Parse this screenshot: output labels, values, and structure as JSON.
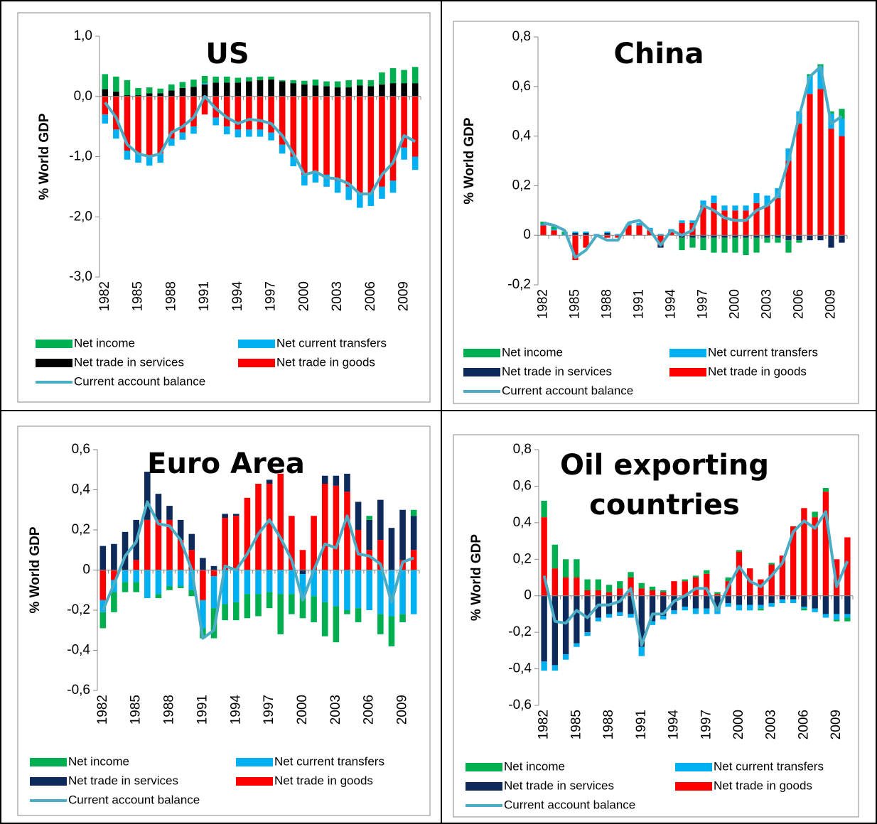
{
  "chart_data": [
    {
      "type": "bar",
      "title": "US",
      "y_label": "% World GDP",
      "categories": [
        "1982",
        null,
        null,
        "1985",
        null,
        null,
        "1988",
        null,
        null,
        "1991",
        null,
        null,
        "1994",
        null,
        null,
        "1997",
        null,
        null,
        "2000",
        null,
        null,
        "2003",
        null,
        null,
        "2006",
        null,
        null,
        "2009",
        null
      ],
      "ylim": [
        -3,
        1
      ],
      "yticks": [
        {
          "value": 1,
          "label": "1,0"
        },
        {
          "value": 0,
          "label": "0,0"
        },
        {
          "value": -1,
          "label": "-1,0"
        },
        {
          "value": -2,
          "label": "-2,0"
        },
        {
          "value": -3,
          "label": "-3,0"
        }
      ],
      "series": [
        {
          "name": "Net income",
          "color": "#00b050",
          "values": [
            0.25,
            0.25,
            0.25,
            0.12,
            0.1,
            0.08,
            0.1,
            0.1,
            0.12,
            0.12,
            0.1,
            0.1,
            0.08,
            0.07,
            0.06,
            0.05,
            0.02,
            0.05,
            0.06,
            0.1,
            0.08,
            0.1,
            0.12,
            0.1,
            0.1,
            0.2,
            0.25,
            0.22,
            0.27
          ]
        },
        {
          "name": "Net current transfers",
          "color": "#00b0f0",
          "values": [
            -0.15,
            -0.15,
            -0.15,
            -0.15,
            -0.15,
            -0.15,
            -0.12,
            -0.12,
            -0.12,
            0.02,
            -0.13,
            -0.13,
            -0.13,
            -0.12,
            -0.12,
            -0.13,
            -0.15,
            -0.16,
            -0.18,
            -0.18,
            -0.2,
            -0.2,
            -0.22,
            -0.25,
            -0.22,
            -0.2,
            -0.2,
            -0.2,
            -0.22
          ]
        },
        {
          "name": "Net trade in services",
          "color": "#000000",
          "values": [
            0.12,
            0.08,
            0.02,
            0.02,
            0.05,
            0.05,
            0.1,
            0.14,
            0.16,
            0.2,
            0.23,
            0.23,
            0.23,
            0.25,
            0.27,
            0.28,
            0.25,
            0.22,
            0.2,
            0.18,
            0.17,
            0.15,
            0.15,
            0.18,
            0.17,
            0.2,
            0.22,
            0.22,
            0.22
          ]
        },
        {
          "name": "Net trade in goods",
          "color": "#ff0000",
          "values": [
            -0.3,
            -0.55,
            -0.9,
            -0.95,
            -1.0,
            -0.95,
            -0.7,
            -0.6,
            -0.5,
            -0.3,
            -0.35,
            -0.5,
            -0.55,
            -0.55,
            -0.55,
            -0.6,
            -0.8,
            -1.0,
            -1.3,
            -1.25,
            -1.3,
            -1.4,
            -1.5,
            -1.6,
            -1.6,
            -1.5,
            -1.4,
            -0.85,
            -1.0
          ]
        },
        {
          "name": "Current account balance",
          "type": "line",
          "color": "#4bacc6",
          "values": [
            -0.1,
            -0.35,
            -0.8,
            -0.95,
            -1.0,
            -0.95,
            -0.6,
            -0.5,
            -0.35,
            0.0,
            -0.2,
            -0.35,
            -0.45,
            -0.38,
            -0.4,
            -0.45,
            -0.65,
            -0.95,
            -1.3,
            -1.25,
            -1.35,
            -1.37,
            -1.45,
            -1.62,
            -1.62,
            -1.3,
            -1.1,
            -0.65,
            -0.75
          ]
        }
      ]
    },
    {
      "type": "bar",
      "title": "China",
      "y_label": "% World GDP",
      "categories": [
        "1982",
        null,
        null,
        "1985",
        null,
        null,
        "1988",
        null,
        null,
        "1991",
        null,
        null,
        "1994",
        null,
        null,
        "1997",
        null,
        null,
        "2000",
        null,
        null,
        "2003",
        null,
        null,
        "2006",
        null,
        null,
        "2009",
        null
      ],
      "ylim": [
        -0.2,
        0.8
      ],
      "yticks": [
        {
          "value": 0.8,
          "label": "0,8"
        },
        {
          "value": 0.6,
          "label": "0,6"
        },
        {
          "value": 0.4,
          "label": "0,4"
        },
        {
          "value": 0.2,
          "label": "0,2"
        },
        0,
        {
          "value": -0.2,
          "label": "-0,2"
        }
      ],
      "series": [
        {
          "name": "Net income",
          "color": "#00b050",
          "values": [
            0.01,
            0.01,
            0.01,
            0.0,
            0.0,
            0.0,
            0.0,
            0.0,
            0.0,
            0.0,
            0.0,
            0.0,
            0.0,
            -0.05,
            -0.04,
            -0.05,
            -0.06,
            -0.06,
            -0.06,
            -0.07,
            -0.06,
            -0.02,
            -0.02,
            -0.05,
            -0.01,
            0.01,
            0.01,
            0.01,
            0.04
          ]
        },
        {
          "name": "Net current transfers",
          "color": "#00b0f0",
          "values": [
            0.005,
            0.005,
            0.005,
            0.005,
            0.005,
            0.005,
            0.005,
            0.005,
            0.005,
            0.01,
            0.01,
            0.005,
            0.005,
            0.01,
            0.01,
            0.02,
            0.03,
            0.02,
            0.02,
            0.02,
            0.04,
            0.04,
            0.04,
            0.05,
            0.05,
            0.07,
            0.09,
            0.06,
            0.07
          ]
        },
        {
          "name": "Net trade in services",
          "color": "#0d2a5a",
          "values": [
            0.0,
            0.0,
            0.0,
            0.01,
            0.01,
            0.0,
            0.01,
            0.0,
            0.0,
            0.0,
            0.0,
            -0.01,
            0.0,
            -0.01,
            -0.01,
            -0.01,
            -0.01,
            -0.01,
            -0.01,
            -0.01,
            -0.01,
            -0.01,
            -0.01,
            -0.02,
            -0.02,
            -0.02,
            -0.02,
            -0.05,
            -0.03
          ]
        },
        {
          "name": "Net trade in goods",
          "color": "#ff0000",
          "values": [
            0.04,
            0.02,
            0.0,
            -0.1,
            -0.05,
            0.0,
            -0.01,
            -0.01,
            0.04,
            0.04,
            0.02,
            -0.04,
            0.02,
            0.05,
            0.05,
            0.12,
            0.13,
            0.1,
            0.1,
            0.1,
            0.13,
            0.12,
            0.15,
            0.3,
            0.45,
            0.57,
            0.59,
            0.43,
            0.4
          ]
        },
        {
          "name": "Current account balance",
          "type": "line",
          "color": "#4bacc6",
          "values": [
            0.05,
            0.04,
            0.02,
            -0.09,
            -0.06,
            0.0,
            -0.02,
            -0.02,
            0.05,
            0.06,
            0.02,
            -0.04,
            0.02,
            0.0,
            0.02,
            0.12,
            0.1,
            0.07,
            0.06,
            0.06,
            0.1,
            0.12,
            0.16,
            0.3,
            0.48,
            0.64,
            0.68,
            0.45,
            0.48
          ]
        }
      ]
    },
    {
      "type": "bar",
      "title": "Euro Area",
      "y_label": "% World GDP",
      "categories": [
        "1982",
        null,
        null,
        "1985",
        null,
        null,
        "1988",
        null,
        null,
        "1991",
        null,
        null,
        "1994",
        null,
        null,
        "1997",
        null,
        null,
        "2000",
        null,
        null,
        "2003",
        null,
        null,
        "2006",
        null,
        null,
        "2009",
        null
      ],
      "ylim": [
        -0.6,
        0.6
      ],
      "yticks": [
        {
          "value": 0.6,
          "label": "0,6"
        },
        {
          "value": 0.4,
          "label": "0,4"
        },
        {
          "value": 0.2,
          "label": "0,2"
        },
        0,
        {
          "value": -0.2,
          "label": "-0,2"
        },
        {
          "value": -0.4,
          "label": "-0,4"
        },
        {
          "value": -0.6,
          "label": "-0,6"
        }
      ],
      "series": [
        {
          "name": "Net income",
          "color": "#00b050",
          "values": [
            -0.08,
            -0.1,
            -0.05,
            -0.05,
            0.0,
            -0.02,
            -0.02,
            -0.01,
            -0.03,
            -0.05,
            -0.15,
            -0.08,
            -0.09,
            -0.12,
            -0.11,
            -0.08,
            -0.2,
            -0.1,
            -0.1,
            -0.13,
            -0.17,
            -0.18,
            -0.02,
            -0.07,
            0.02,
            -0.1,
            -0.15,
            -0.04,
            0.03
          ]
        },
        {
          "name": "Net current transfers",
          "color": "#00b0f0",
          "values": [
            -0.06,
            -0.06,
            -0.06,
            -0.06,
            -0.14,
            -0.12,
            -0.08,
            -0.08,
            -0.1,
            -0.14,
            -0.16,
            -0.17,
            -0.16,
            -0.12,
            -0.12,
            -0.11,
            -0.12,
            -0.12,
            -0.12,
            -0.13,
            -0.16,
            -0.18,
            -0.2,
            -0.19,
            -0.2,
            -0.22,
            -0.23,
            -0.22,
            -0.22
          ]
        },
        {
          "name": "Net trade in services",
          "color": "#0d2a5a",
          "values": [
            0.12,
            0.13,
            0.19,
            0.2,
            0.24,
            0.13,
            0.07,
            0.1,
            0.08,
            0.06,
            0.02,
            0.02,
            0.01,
            0.0,
            0.0,
            0.02,
            0.0,
            0.0,
            -0.02,
            0.0,
            0.04,
            0.05,
            0.09,
            0.14,
            0.15,
            0.2,
            0.21,
            0.25,
            0.17
          ]
        },
        {
          "name": "Net trade in goods",
          "color": "#ff0000",
          "values": [
            -0.15,
            -0.05,
            0.0,
            0.05,
            0.25,
            0.25,
            0.25,
            0.15,
            0.1,
            -0.15,
            -0.03,
            0.26,
            0.27,
            0.36,
            0.43,
            0.43,
            0.48,
            0.27,
            0.1,
            0.27,
            0.43,
            0.42,
            0.39,
            0.2,
            0.1,
            0.15,
            0.0,
            0.05,
            0.1
          ]
        },
        {
          "name": "Current account balance",
          "type": "line",
          "color": "#4bacc6",
          "values": [
            -0.2,
            -0.07,
            0.07,
            0.14,
            0.34,
            0.23,
            0.22,
            0.15,
            0.0,
            -0.34,
            -0.3,
            0.02,
            0.0,
            0.08,
            0.18,
            0.25,
            0.16,
            0.05,
            -0.15,
            0.0,
            0.13,
            0.11,
            0.27,
            0.08,
            0.07,
            0.03,
            -0.16,
            0.04,
            0.06
          ]
        }
      ]
    },
    {
      "type": "bar",
      "title": "Oil exporting countries",
      "y_label": "% World GDP",
      "categories": [
        "1982",
        null,
        null,
        "1985",
        null,
        null,
        "1988",
        null,
        null,
        "1991",
        null,
        null,
        "1994",
        null,
        null,
        "1997",
        null,
        null,
        "2000",
        null,
        null,
        "2003",
        null,
        null,
        "2006",
        null,
        null,
        "2009",
        null
      ],
      "ylim": [
        -0.6,
        0.8
      ],
      "yticks": [
        {
          "value": 0.8,
          "label": "0,8"
        },
        {
          "value": 0.6,
          "label": "0,6"
        },
        {
          "value": 0.4,
          "label": "0,4"
        },
        {
          "value": 0.2,
          "label": "0,2"
        },
        0,
        {
          "value": -0.2,
          "label": "-0,2"
        },
        {
          "value": -0.4,
          "label": "-0,4"
        },
        {
          "value": -0.6,
          "label": "-0,6"
        }
      ],
      "series": [
        {
          "name": "Net income",
          "color": "#00b050",
          "values": [
            0.09,
            0.13,
            0.1,
            0.1,
            0.06,
            0.06,
            0.04,
            0.04,
            0.03,
            0.03,
            0.02,
            0.01,
            0.0,
            0.01,
            0.01,
            0.02,
            0.01,
            0.02,
            0.01,
            0.0,
            -0.01,
            0.01,
            0.0,
            0.0,
            -0.01,
            0.03,
            0.02,
            -0.01,
            -0.02
          ]
        },
        {
          "name": "Net current transfers",
          "color": "#00b0f0",
          "values": [
            -0.05,
            -0.03,
            -0.03,
            -0.02,
            -0.02,
            -0.02,
            -0.02,
            -0.02,
            -0.02,
            -0.05,
            -0.02,
            -0.02,
            -0.02,
            -0.02,
            -0.03,
            -0.03,
            -0.03,
            -0.02,
            -0.03,
            -0.03,
            -0.02,
            -0.02,
            -0.02,
            -0.02,
            -0.01,
            -0.02,
            -0.02,
            -0.03,
            -0.02
          ]
        },
        {
          "name": "Net trade in services",
          "color": "#0d2a5a",
          "values": [
            -0.36,
            -0.38,
            -0.32,
            -0.26,
            -0.2,
            -0.12,
            -0.1,
            -0.09,
            -0.1,
            -0.28,
            -0.14,
            -0.11,
            -0.08,
            -0.06,
            -0.07,
            -0.07,
            -0.07,
            -0.04,
            -0.05,
            -0.05,
            -0.05,
            -0.04,
            -0.02,
            -0.02,
            -0.06,
            -0.07,
            -0.1,
            -0.1,
            -0.1
          ]
        },
        {
          "name": "Net trade in goods",
          "color": "#ff0000",
          "values": [
            0.43,
            0.15,
            0.1,
            0.1,
            0.03,
            0.03,
            0.02,
            0.04,
            0.1,
            0.04,
            0.03,
            0.02,
            0.08,
            0.08,
            0.1,
            0.12,
            0.01,
            0.08,
            0.24,
            0.15,
            0.09,
            0.17,
            0.22,
            0.38,
            0.48,
            0.43,
            0.57,
            0.2,
            0.32
          ]
        },
        {
          "name": "Current account balance",
          "type": "line",
          "color": "#4bacc6",
          "values": [
            0.11,
            -0.14,
            -0.15,
            -0.08,
            -0.12,
            -0.05,
            -0.05,
            -0.03,
            0.04,
            -0.27,
            -0.1,
            -0.1,
            -0.03,
            0.0,
            0.04,
            0.04,
            -0.08,
            0.05,
            0.16,
            0.08,
            0.05,
            0.11,
            0.18,
            0.35,
            0.41,
            0.37,
            0.46,
            0.05,
            0.19
          ]
        }
      ]
    }
  ]
}
